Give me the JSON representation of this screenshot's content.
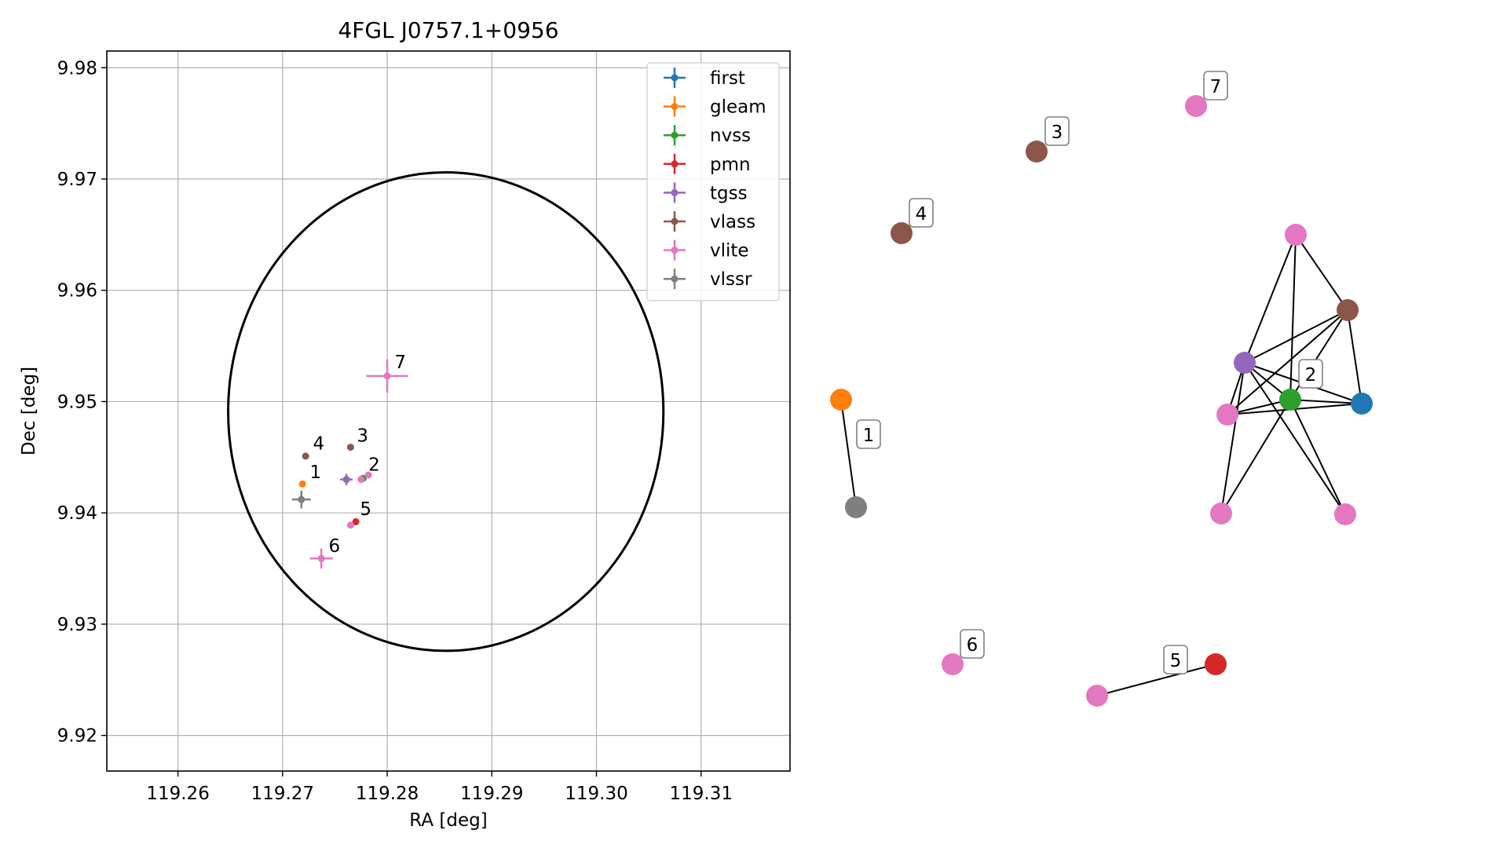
{
  "chart_data": [
    {
      "type": "scatter",
      "title": "4FGL J0757.1+0956",
      "xlabel": "RA [deg]",
      "ylabel": "Dec [deg]",
      "xlim": [
        119.2532,
        119.3185
      ],
      "ylim": [
        9.9168,
        9.9815
      ],
      "xticks": [
        "119.26",
        "119.27",
        "119.28",
        "119.29",
        "119.30",
        "119.31"
      ],
      "xtick_values": [
        119.26,
        119.27,
        119.28,
        119.29,
        119.3,
        119.31
      ],
      "yticks": [
        "9.92",
        "9.93",
        "9.94",
        "9.95",
        "9.96",
        "9.97",
        "9.98"
      ],
      "ytick_values": [
        9.92,
        9.93,
        9.94,
        9.95,
        9.96,
        9.97,
        9.98
      ],
      "grid": true,
      "legend_position": "upper-right",
      "ellipse": {
        "center": [
          119.2856,
          9.9491
        ],
        "semi_axis_ra": 0.0208,
        "semi_axis_dec": 0.0215,
        "color": "#000000"
      },
      "series": [
        {
          "name": "first",
          "color": "#1f77b4",
          "points": []
        },
        {
          "name": "gleam",
          "color": "#ff7f0e",
          "points": [
            {
              "x": 119.2719,
              "y": 9.9426,
              "ex": 0.0,
              "ey": 0.0
            }
          ]
        },
        {
          "name": "nvss",
          "color": "#2ca02c",
          "points": [
            {
              "x": 119.2777,
              "y": 9.9431,
              "ex": 0.0003,
              "ey": 0.0003
            }
          ]
        },
        {
          "name": "pmn",
          "color": "#d62728",
          "points": [
            {
              "x": 119.277,
              "y": 9.9392,
              "ex": 0.0003,
              "ey": 0.0003
            }
          ]
        },
        {
          "name": "tgss",
          "color": "#9467bd",
          "points": [
            {
              "x": 119.2761,
              "y": 9.943,
              "ex": 0.0006,
              "ey": 0.0005
            }
          ]
        },
        {
          "name": "vlass",
          "color": "#8c564b",
          "points": [
            {
              "x": 119.2722,
              "y": 9.9451,
              "ex": 0.0,
              "ey": 0.0
            },
            {
              "x": 119.2765,
              "y": 9.9459,
              "ex": 0.0,
              "ey": 0.0
            }
          ]
        },
        {
          "name": "vlite",
          "color": "#e377c2",
          "points": [
            {
              "x": 119.28,
              "y": 9.9523,
              "ex": 0.002,
              "ey": 0.0015
            },
            {
              "x": 119.2737,
              "y": 9.9359,
              "ex": 0.0011,
              "ey": 0.0009
            },
            {
              "x": 119.2765,
              "y": 9.9389,
              "ex": 0.0002,
              "ey": 0.0002
            },
            {
              "x": 119.2782,
              "y": 9.9434,
              "ex": 0.0002,
              "ey": 0.0002
            },
            {
              "x": 119.2775,
              "y": 9.943,
              "ex": 0.0002,
              "ey": 0.0002
            }
          ]
        },
        {
          "name": "vlssr",
          "color": "#7f7f7f",
          "points": [
            {
              "x": 119.2718,
              "y": 9.9412,
              "ex": 0.0009,
              "ey": 0.0008
            }
          ]
        }
      ],
      "annotations": [
        {
          "text": "1",
          "x": 119.2726,
          "y": 9.9431
        },
        {
          "text": "2",
          "x": 119.2782,
          "y": 9.9438
        },
        {
          "text": "3",
          "x": 119.2771,
          "y": 9.9464
        },
        {
          "text": "4",
          "x": 119.2729,
          "y": 9.9457
        },
        {
          "text": "5",
          "x": 119.2774,
          "y": 9.9398
        },
        {
          "text": "6",
          "x": 119.2744,
          "y": 9.9365
        },
        {
          "text": "7",
          "x": 119.2807,
          "y": 9.953
        }
      ]
    },
    {
      "type": "network",
      "nodes": [
        {
          "id": "g1",
          "color": "#ff7f0e"
        },
        {
          "id": "s1",
          "color": "#7f7f7f"
        },
        {
          "id": "v4",
          "color": "#8c564b"
        },
        {
          "id": "v3",
          "color": "#8c564b"
        },
        {
          "id": "l7",
          "color": "#e377c2"
        },
        {
          "id": "l2top",
          "color": "#e377c2"
        },
        {
          "id": "v2",
          "color": "#8c564b"
        },
        {
          "id": "t2",
          "color": "#9467bd"
        },
        {
          "id": "n2",
          "color": "#2ca02c"
        },
        {
          "id": "f2",
          "color": "#1f77b4"
        },
        {
          "id": "l2mid",
          "color": "#e377c2"
        },
        {
          "id": "l2bl",
          "color": "#e377c2"
        },
        {
          "id": "l2br",
          "color": "#e377c2"
        },
        {
          "id": "l6",
          "color": "#e377c2"
        },
        {
          "id": "l5",
          "color": "#e377c2"
        },
        {
          "id": "p5",
          "color": "#d62728"
        }
      ],
      "edges": [
        [
          "g1",
          "s1"
        ],
        [
          "l5",
          "p5"
        ],
        [
          "l2top",
          "t2"
        ],
        [
          "l2top",
          "n2"
        ],
        [
          "l2top",
          "v2"
        ],
        [
          "v2",
          "t2"
        ],
        [
          "v2",
          "f2"
        ],
        [
          "v2",
          "l2mid"
        ],
        [
          "v2",
          "n2"
        ],
        [
          "t2",
          "n2"
        ],
        [
          "t2",
          "f2"
        ],
        [
          "t2",
          "l2mid"
        ],
        [
          "t2",
          "l2bl"
        ],
        [
          "t2",
          "l2br"
        ],
        [
          "n2",
          "f2"
        ],
        [
          "n2",
          "l2mid"
        ],
        [
          "n2",
          "l2bl"
        ],
        [
          "n2",
          "l2br"
        ],
        [
          "l2mid",
          "f2"
        ]
      ],
      "labels": [
        {
          "text": "1",
          "node": "s1"
        },
        {
          "text": "2",
          "node": "n2"
        },
        {
          "text": "3",
          "node": "v3"
        },
        {
          "text": "4",
          "node": "v4"
        },
        {
          "text": "5",
          "node": "p5"
        },
        {
          "text": "6",
          "node": "l6"
        },
        {
          "text": "7",
          "node": "l7"
        }
      ]
    }
  ]
}
